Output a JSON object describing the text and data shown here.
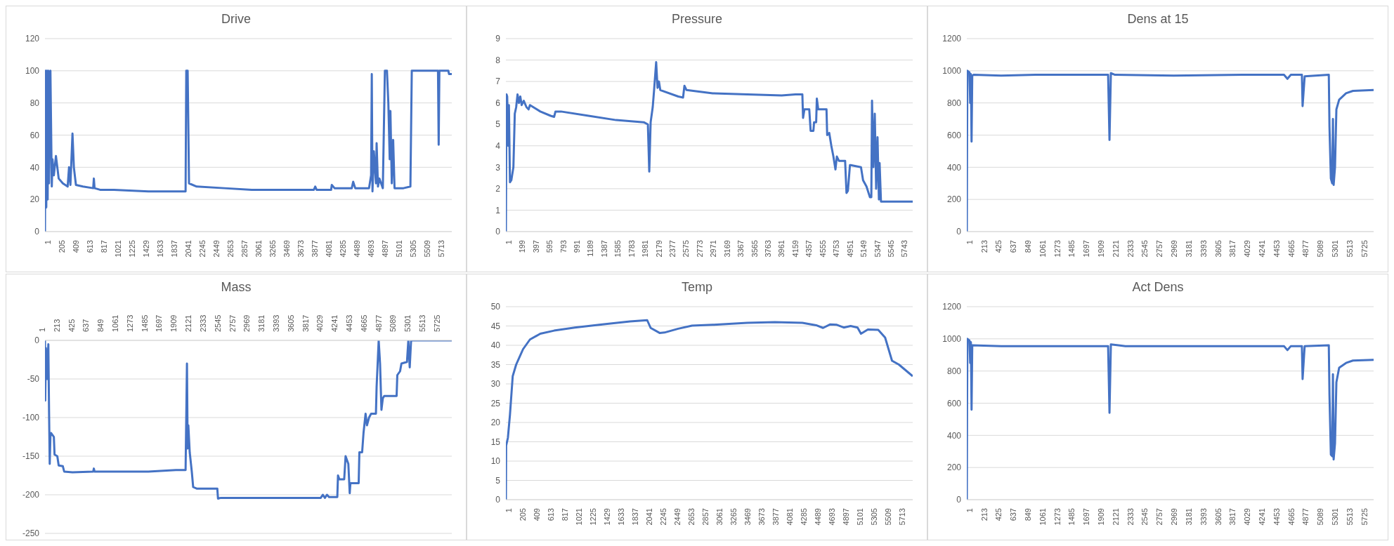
{
  "chart_data": [
    {
      "type": "line",
      "title": "Drive",
      "grid": "y",
      "xlim": [
        1,
        5900
      ],
      "xticks": [
        1,
        205,
        409,
        613,
        817,
        1021,
        1225,
        1429,
        1633,
        1837,
        2041,
        2245,
        2449,
        2653,
        2857,
        3061,
        3265,
        3469,
        3673,
        3877,
        4081,
        4285,
        4489,
        4693,
        4897,
        5101,
        5305,
        5509,
        5713
      ],
      "ylim": [
        0,
        120
      ],
      "yticks": [
        0,
        20,
        40,
        60,
        80,
        100,
        120
      ],
      "x": [
        1,
        10,
        20,
        30,
        40,
        50,
        60,
        80,
        100,
        110,
        130,
        160,
        200,
        260,
        330,
        350,
        370,
        400,
        420,
        450,
        550,
        700,
        710,
        720,
        800,
        1000,
        1500,
        2000,
        2040,
        2050,
        2070,
        2090,
        2200,
        2600,
        3000,
        3500,
        3900,
        3920,
        3940,
        4150,
        4160,
        4200,
        4450,
        4470,
        4500,
        4700,
        4730,
        4740,
        4750,
        4770,
        4800,
        4810,
        4830,
        4850,
        4900,
        4930,
        4960,
        4980,
        5000,
        5010,
        5030,
        5050,
        5070,
        5200,
        5300,
        5320,
        5600,
        5700,
        5710,
        5720,
        5850,
        5860,
        5900
      ],
      "series": [
        {
          "color": "#4472c4",
          "values": [
            0,
            100,
            15,
            100,
            20,
            100,
            30,
            100,
            28,
            45,
            35,
            47,
            33,
            30,
            28,
            40,
            29,
            61,
            40,
            29,
            28,
            27,
            33,
            27,
            26,
            26,
            25,
            25,
            25,
            100,
            100,
            30,
            28,
            27,
            26,
            26,
            26,
            28,
            26,
            26,
            29,
            27,
            27,
            31,
            27,
            27,
            35,
            98,
            25,
            50,
            30,
            55,
            28,
            33,
            27,
            100,
            100,
            80,
            45,
            75,
            30,
            57,
            27,
            27,
            28,
            100,
            100,
            100,
            54,
            100,
            100,
            98,
            98
          ]
        }
      ]
    },
    {
      "type": "line",
      "title": "Pressure",
      "grid": "y",
      "xlim": [
        1,
        5900
      ],
      "xticks": [
        1,
        199,
        397,
        595,
        793,
        991,
        1189,
        1387,
        1585,
        1783,
        1981,
        2179,
        2377,
        2575,
        2773,
        2971,
        3169,
        3367,
        3565,
        3763,
        3961,
        4159,
        4357,
        4555,
        4753,
        4951,
        5149,
        5347,
        5545,
        5743
      ],
      "ylim": [
        0,
        9
      ],
      "yticks": [
        0,
        1,
        2,
        3,
        4,
        5,
        6,
        7,
        8,
        9
      ],
      "x": [
        1,
        10,
        20,
        35,
        45,
        60,
        80,
        110,
        130,
        150,
        170,
        190,
        210,
        230,
        260,
        300,
        330,
        350,
        500,
        650,
        700,
        720,
        800,
        1200,
        1600,
        2000,
        2060,
        2080,
        2100,
        2130,
        2150,
        2180,
        2200,
        2220,
        2240,
        2500,
        2570,
        2590,
        2620,
        3000,
        3500,
        4000,
        4200,
        4300,
        4310,
        4330,
        4400,
        4420,
        4460,
        4470,
        4500,
        4510,
        4530,
        4650,
        4660,
        4690,
        4720,
        4750,
        4780,
        4800,
        4830,
        4920,
        4940,
        4960,
        4990,
        5000,
        5150,
        5180,
        5230,
        5280,
        5300,
        5310,
        5330,
        5350,
        5370,
        5390,
        5410,
        5420,
        5440,
        5900
      ],
      "series": [
        {
          "color": "#4472c4",
          "values": [
            0,
            6.4,
            6.3,
            4,
            5.9,
            2.3,
            2.4,
            3,
            5.5,
            5.8,
            6.4,
            6,
            6.3,
            5.9,
            6.1,
            5.8,
            5.7,
            5.9,
            5.6,
            5.4,
            5.35,
            5.6,
            5.6,
            5.4,
            5.2,
            5.1,
            5,
            2.8,
            5.1,
            5.8,
            6.6,
            7.9,
            6.7,
            7,
            6.6,
            6.3,
            6.25,
            6.8,
            6.6,
            6.45,
            6.4,
            6.35,
            6.4,
            6.4,
            5.3,
            5.7,
            5.7,
            4.7,
            4.7,
            5.1,
            5.1,
            6.2,
            5.7,
            5.7,
            4.5,
            4.6,
            4,
            3.5,
            2.9,
            3.5,
            3.3,
            3.3,
            1.8,
            1.9,
            3.1,
            3.1,
            3,
            2.4,
            2.1,
            1.6,
            1.6,
            6.1,
            3,
            5.5,
            2,
            4.4,
            1.5,
            3.2,
            1.4,
            1.4
          ]
        }
      ]
    },
    {
      "type": "line",
      "title": "Dens at 15",
      "grid": "y",
      "xlim": [
        1,
        5900
      ],
      "xticks": [
        1,
        213,
        425,
        637,
        849,
        1061,
        1273,
        1485,
        1697,
        1909,
        2121,
        2333,
        2545,
        2757,
        2969,
        3181,
        3393,
        3605,
        3817,
        4029,
        4241,
        4453,
        4665,
        4877,
        5089,
        5301,
        5513,
        5725
      ],
      "ylim": [
        0,
        1200
      ],
      "yticks": [
        0,
        200,
        400,
        600,
        800,
        1000,
        1200
      ],
      "x": [
        1,
        5,
        10,
        40,
        50,
        60,
        70,
        80,
        100,
        500,
        1000,
        2050,
        2070,
        2090,
        2150,
        3000,
        4000,
        4600,
        4650,
        4700,
        4860,
        4870,
        4900,
        5250,
        5260,
        5280,
        5300,
        5310,
        5320,
        5340,
        5360,
        5400,
        5500,
        5600,
        5900
      ],
      "series": [
        {
          "color": "#4472c4",
          "values": [
            0,
            550,
            1000,
            990,
            800,
            980,
            560,
            970,
            975,
            970,
            975,
            975,
            570,
            985,
            975,
            970,
            975,
            975,
            950,
            975,
            975,
            780,
            965,
            975,
            650,
            330,
            300,
            700,
            290,
            400,
            760,
            820,
            860,
            875,
            880
          ]
        }
      ]
    },
    {
      "type": "line",
      "title": "Mass",
      "grid": "y",
      "xlim": [
        1,
        5900
      ],
      "xticks": [
        1,
        213,
        425,
        637,
        849,
        1061,
        1273,
        1485,
        1697,
        1909,
        2121,
        2333,
        2545,
        2757,
        2969,
        3181,
        3393,
        3605,
        3817,
        4029,
        4241,
        4453,
        4665,
        4877,
        5089,
        5301,
        5513,
        5725
      ],
      "ylim": [
        -250,
        0
      ],
      "yticks": [
        -250,
        -200,
        -150,
        -100,
        -50,
        0
      ],
      "x": [
        1,
        5,
        15,
        30,
        50,
        60,
        70,
        80,
        90,
        130,
        140,
        180,
        200,
        260,
        280,
        400,
        700,
        710,
        720,
        1500,
        1900,
        2040,
        2060,
        2070,
        2080,
        2100,
        2130,
        2150,
        2200,
        2500,
        2510,
        2550,
        3500,
        4000,
        4030,
        4060,
        4090,
        4120,
        4240,
        4250,
        4270,
        4340,
        4360,
        4400,
        4420,
        4430,
        4550,
        4560,
        4600,
        4620,
        4650,
        4670,
        4700,
        4730,
        4800,
        4810,
        4840,
        4860,
        4880,
        4900,
        4920,
        5100,
        5110,
        5150,
        5170,
        5250,
        5270,
        5290,
        5310,
        5900
      ],
      "series": [
        {
          "color": "#4472c4",
          "values": [
            0,
            -78,
            -10,
            -50,
            -5,
            -90,
            -160,
            -125,
            -120,
            -125,
            -148,
            -150,
            -162,
            -163,
            -170,
            -171,
            -170,
            -166,
            -170,
            -170,
            -168,
            -168,
            -30,
            -140,
            -110,
            -145,
            -170,
            -190,
            -192,
            -192,
            -205,
            -204,
            -204,
            -204,
            -200,
            -204,
            -200,
            -203,
            -203,
            -175,
            -180,
            -180,
            -150,
            -160,
            -198,
            -185,
            -185,
            -145,
            -145,
            -120,
            -95,
            -110,
            -100,
            -95,
            -95,
            -60,
            0,
            -30,
            -90,
            -75,
            -72,
            -72,
            -45,
            -40,
            -30,
            -28,
            0,
            -35,
            0,
            0
          ]
        }
      ]
    },
    {
      "type": "line",
      "title": "Temp",
      "grid": "y",
      "xlim": [
        1,
        5900
      ],
      "xticks": [
        1,
        205,
        409,
        613,
        817,
        1021,
        1225,
        1429,
        1633,
        1837,
        2041,
        2245,
        2449,
        2653,
        2857,
        3061,
        3265,
        3469,
        3673,
        3877,
        4081,
        4285,
        4489,
        4693,
        4897,
        5101,
        5305,
        5509,
        5713
      ],
      "ylim": [
        0,
        50
      ],
      "yticks": [
        0,
        5,
        10,
        15,
        20,
        25,
        30,
        35,
        40,
        45,
        50
      ],
      "x": [
        1,
        5,
        30,
        60,
        100,
        150,
        250,
        350,
        500,
        700,
        1000,
        1400,
        1800,
        2050,
        2100,
        2230,
        2300,
        2500,
        2700,
        3000,
        3500,
        3900,
        4300,
        4500,
        4600,
        4700,
        4800,
        4900,
        5000,
        5100,
        5150,
        5250,
        5400,
        5500,
        5600,
        5700,
        5900
      ],
      "series": [
        {
          "color": "#4472c4",
          "values": [
            0,
            14,
            16,
            22,
            32,
            35,
            39,
            41.5,
            43,
            43.8,
            44.6,
            45.4,
            46.2,
            46.5,
            44.5,
            43.2,
            43.3,
            44.3,
            45.1,
            45.3,
            45.8,
            46,
            45.8,
            45.2,
            44.5,
            45.4,
            45.3,
            44.6,
            45,
            44.6,
            43,
            44.1,
            44,
            42,
            36,
            35,
            32
          ]
        }
      ]
    },
    {
      "type": "line",
      "title": "Act Dens",
      "grid": "y",
      "xlim": [
        1,
        5900
      ],
      "xticks": [
        1,
        213,
        425,
        637,
        849,
        1061,
        1273,
        1485,
        1697,
        1909,
        2121,
        2333,
        2545,
        2757,
        2969,
        3181,
        3393,
        3605,
        3817,
        4029,
        4241,
        4453,
        4665,
        4877,
        5089,
        5301,
        5513,
        5725
      ],
      "ylim": [
        0,
        1200
      ],
      "yticks": [
        0,
        200,
        400,
        600,
        800,
        1000,
        1200
      ],
      "x": [
        1,
        5,
        10,
        40,
        50,
        60,
        70,
        80,
        500,
        2050,
        2070,
        2090,
        2200,
        2300,
        4600,
        4650,
        4700,
        4860,
        4870,
        4900,
        5250,
        5260,
        5280,
        5300,
        5310,
        5320,
        5340,
        5360,
        5400,
        5500,
        5600,
        5900
      ],
      "series": [
        {
          "color": "#4472c4",
          "values": [
            0,
            560,
            1000,
            990,
            850,
            980,
            560,
            960,
            955,
            955,
            540,
            965,
            960,
            955,
            955,
            930,
            955,
            955,
            750,
            955,
            960,
            650,
            280,
            270,
            780,
            250,
            350,
            730,
            820,
            850,
            865,
            870
          ]
        }
      ]
    }
  ]
}
